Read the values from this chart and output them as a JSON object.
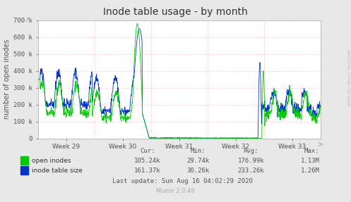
{
  "title": "Inode table usage - by month",
  "ylabel": "number of open inodes",
  "background_color": "#e8e8e8",
  "plot_bg_color": "#ffffff",
  "grid_color": "#ff9999",
  "ylim": [
    0,
    700000
  ],
  "yticks": [
    0,
    100000,
    200000,
    300000,
    400000,
    500000,
    600000,
    700000
  ],
  "ytick_labels": [
    "0",
    "100 k",
    "200 k",
    "300 k",
    "400 k",
    "500 k",
    "600 k",
    "700 k"
  ],
  "week_labels": [
    "Week 29",
    "Week 30",
    "Week 31",
    "Week 32",
    "Week 33"
  ],
  "legend_items": [
    {
      "label": "open inodes",
      "color": "#00cc00"
    },
    {
      "label": "inode table size",
      "color": "#0033cc"
    }
  ],
  "stats_header": [
    "Cur:",
    "Min:",
    "Avg:",
    "Max:"
  ],
  "stats_open_inodes": [
    "105.24k",
    "29.74k",
    "176.99k",
    "1.13M"
  ],
  "stats_inode_table": [
    "161.37k",
    "30.26k",
    "233.26k",
    "1.26M"
  ],
  "last_update": "Last update: Sun Aug 16 04:02:29 2020",
  "munin_version": "Munin 2.0.49",
  "rrdtool_label": "RRDTOOL / TOBI OETIKER",
  "title_fontsize": 10,
  "axis_label_fontsize": 7,
  "tick_fontsize": 6.5,
  "stats_fontsize": 6.5
}
